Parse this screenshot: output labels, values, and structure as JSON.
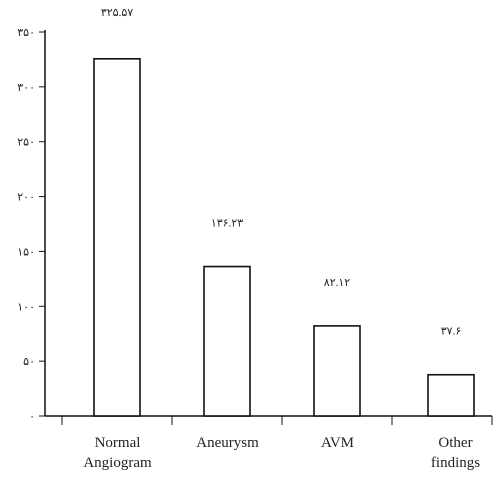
{
  "chart_data": {
    "type": "bar",
    "categories": [
      [
        "Normal",
        "Angiogram"
      ],
      [
        "Aneurysm"
      ],
      [
        "AVM"
      ],
      [
        "Other",
        "findings"
      ]
    ],
    "values": [
      325.57,
      136.23,
      82.12,
      37.6
    ],
    "data_labels": [
      "۳۲۵.۵۷",
      "۱۳۶.۲۳",
      "۸۲.۱۲",
      "۳۷.۶"
    ],
    "y_ticks": [
      0,
      50,
      100,
      150,
      200,
      250,
      300,
      350
    ],
    "y_tick_labels": [
      "۰",
      "۵۰",
      "۱۰۰",
      "۱۵۰",
      "۲۰۰",
      "۲۵۰",
      "۳۰۰",
      "۳۵۰"
    ],
    "ylim": [
      0,
      350
    ],
    "title": "",
    "xlabel": "",
    "ylabel": "",
    "grid": false,
    "legend": "none",
    "colors": {
      "bar_fill": "#ffffff",
      "bar_stroke": "#111111",
      "axis": "#111111"
    }
  }
}
